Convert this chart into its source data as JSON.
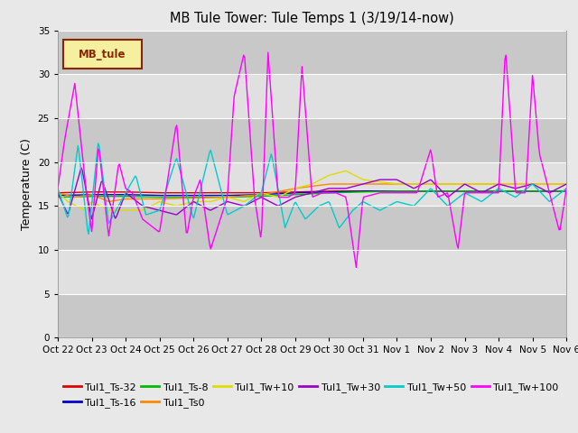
{
  "title": "MB Tule Tower: Tule Temps 1 (3/19/14-now)",
  "ylabel": "Temperature (C)",
  "ylim": [
    0,
    35
  ],
  "yticks": [
    0,
    5,
    10,
    15,
    20,
    25,
    30,
    35
  ],
  "bg_color": "#e8e8e8",
  "plot_bg_color": "#d8d8d8",
  "band_color_dark": "#c8c8c8",
  "band_color_light": "#e0e0e0",
  "legend_label": "MB_tule",
  "legend_box_facecolor": "#f5f0a0",
  "legend_box_edgecolor": "#8b2500",
  "legend_text_color": "#8b2500",
  "series": [
    {
      "label": "Tul1_Ts-32",
      "color": "#dd0000"
    },
    {
      "label": "Tul1_Ts-16",
      "color": "#0000cc"
    },
    {
      "label": "Tul1_Ts-8",
      "color": "#00bb00"
    },
    {
      "label": "Tul1_Ts0",
      "color": "#ff8800"
    },
    {
      "label": "Tul1_Tw+10",
      "color": "#dddd00"
    },
    {
      "label": "Tul1_Tw+30",
      "color": "#9900cc"
    },
    {
      "label": "Tul1_Tw+50",
      "color": "#00cccc"
    },
    {
      "label": "Tul1_Tw+100",
      "color": "#ff00ff"
    }
  ],
  "x_tick_labels": [
    "Oct 22",
    "Oct 23",
    "Oct 24",
    "Oct 25",
    "Oct 26",
    "Oct 27",
    "Oct 28",
    "Oct 29",
    "Oct 30",
    "Oct 31",
    "Nov 1",
    "Nov 2",
    "Nov 3",
    "Nov 4",
    "Nov 5",
    "Nov 6"
  ]
}
